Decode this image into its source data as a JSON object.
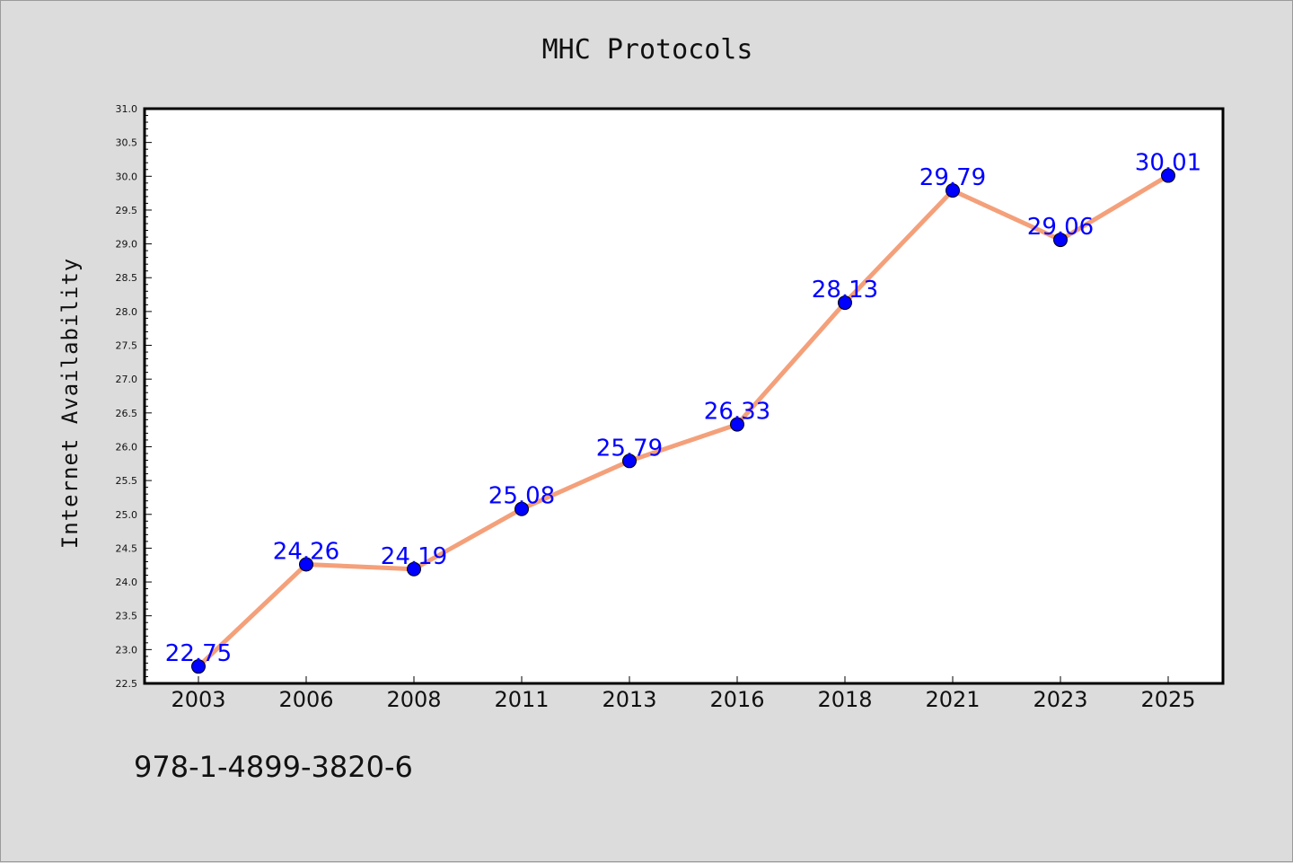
{
  "chart_data": {
    "type": "line",
    "title": "MHC Protocols",
    "xlabel": "",
    "ylabel": "Internet Availability",
    "categories": [
      "2003",
      "2006",
      "2008",
      "2011",
      "2013",
      "2016",
      "2018",
      "2021",
      "2023",
      "2025"
    ],
    "series": [
      {
        "values": [
          22.75,
          24.26,
          24.19,
          25.08,
          25.79,
          26.33,
          28.13,
          29.79,
          29.06,
          30.01
        ]
      }
    ],
    "data_labels": [
      "22.75",
      "24.26",
      "24.19",
      "25.08",
      "25.79",
      "26.33",
      "28.13",
      "29.79",
      "29.06",
      "30.01"
    ],
    "ylim": [
      22.5,
      31.0
    ],
    "y_ticks": [
      "22.5",
      "23.0",
      "23.5",
      "24.0",
      "24.5",
      "25.0",
      "25.5",
      "26.0",
      "26.5",
      "27.0",
      "27.5",
      "28.0",
      "28.5",
      "29.0",
      "29.5",
      "30.0",
      "30.5",
      "31.0"
    ],
    "grid": false,
    "legend": "none",
    "colors": {
      "line": "#f4a07a",
      "marker": "#0000ff",
      "data_label": "#0000ff",
      "plot_background": "#ffffff",
      "figure_background": "#dcdcdc"
    }
  },
  "footer": {
    "isbn": "978-1-4899-3820-6"
  }
}
